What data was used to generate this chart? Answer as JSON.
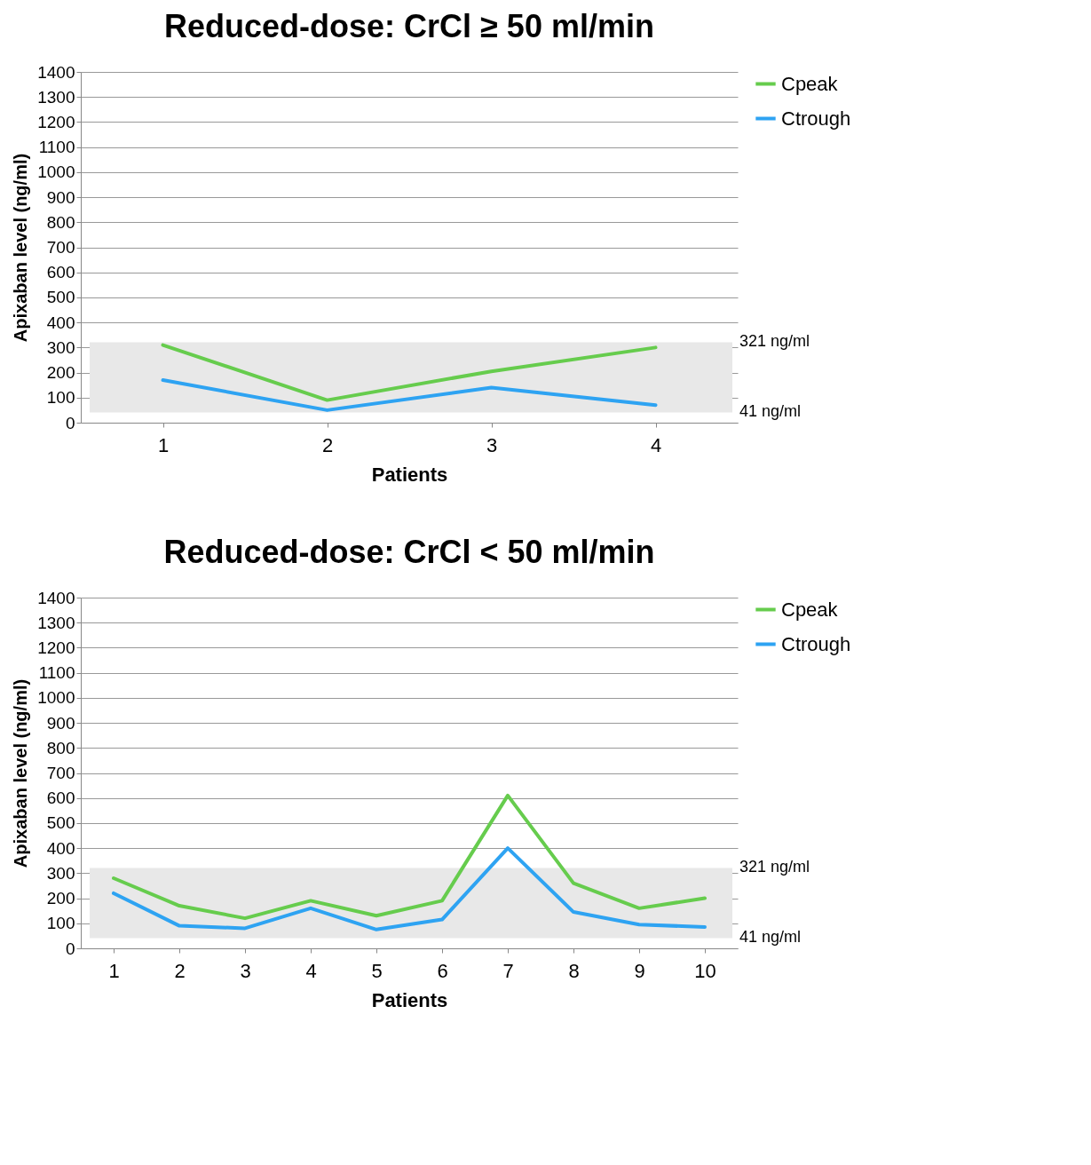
{
  "chart_data": [
    {
      "type": "line",
      "title": "Reduced-dose: CrCl ≥ 50 ml/min",
      "xlabel": "Patients",
      "ylabel": "Apixaban level (ng/ml)",
      "categories": [
        "1",
        "2",
        "3",
        "4"
      ],
      "series": [
        {
          "name": "Cpeak",
          "color": "#66cc4d",
          "values": [
            310,
            90,
            205,
            300
          ]
        },
        {
          "name": "Ctrough",
          "color": "#2ea3f2",
          "values": [
            170,
            50,
            140,
            70
          ]
        }
      ],
      "ylim": [
        0,
        1400
      ],
      "yticks": [
        0,
        100,
        200,
        300,
        400,
        500,
        600,
        700,
        800,
        900,
        1000,
        1100,
        1200,
        1300,
        1400
      ],
      "grid": "y",
      "legend": "top right",
      "marker": "none",
      "line_style": "solid",
      "bands": [
        {
          "axis": "y",
          "from": 41,
          "to": 321,
          "color": "#e8e8e8"
        }
      ],
      "annotations": [
        "321 ng/ml",
        "41 ng/ml"
      ]
    },
    {
      "type": "line",
      "title": "Reduced-dose: CrCl < 50 ml/min",
      "xlabel": "Patients",
      "ylabel": "Apixaban level (ng/ml)",
      "categories": [
        "1",
        "2",
        "3",
        "4",
        "5",
        "6",
        "7",
        "8",
        "9",
        "10"
      ],
      "series": [
        {
          "name": "Cpeak",
          "color": "#66cc4d",
          "values": [
            280,
            170,
            120,
            190,
            130,
            190,
            610,
            260,
            160,
            200
          ]
        },
        {
          "name": "Ctrough",
          "color": "#2ea3f2",
          "values": [
            220,
            90,
            80,
            160,
            75,
            115,
            400,
            145,
            95,
            85
          ]
        }
      ],
      "ylim": [
        0,
        1400
      ],
      "yticks": [
        0,
        100,
        200,
        300,
        400,
        500,
        600,
        700,
        800,
        900,
        1000,
        1100,
        1200,
        1300,
        1400
      ],
      "grid": "y",
      "legend": "top right",
      "marker": "none",
      "line_style": "solid",
      "bands": [
        {
          "axis": "y",
          "from": 41,
          "to": 321,
          "color": "#e8e8e8"
        }
      ],
      "annotations": [
        "321 ng/ml",
        "41 ng/ml"
      ]
    }
  ]
}
